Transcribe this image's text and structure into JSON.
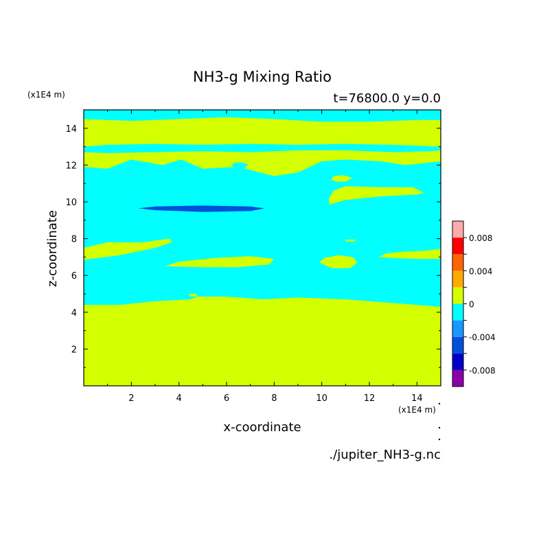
{
  "chart_data": {
    "type": "heatmap",
    "title": "NH3-g Mixing Ratio",
    "subtitle": "t=76800.0 y=0.0",
    "xlabel": "x-coordinate",
    "ylabel": "z-coordinate",
    "x_unit": "(x1E4 m)",
    "y_unit": "(x1E4 m)",
    "source": "./jupiter_NH3-g.nc",
    "xlim": [
      0,
      15
    ],
    "ylim": [
      0,
      15
    ],
    "xticks": [
      "2",
      "4",
      "6",
      "8",
      "10",
      "12",
      "14"
    ],
    "yticks": [
      "2",
      "4",
      "6",
      "8",
      "10",
      "12",
      "14"
    ],
    "colorbar": {
      "levels": [
        -0.01,
        -0.008,
        -0.006,
        -0.004,
        -0.002,
        0,
        0.002,
        0.004,
        0.006,
        0.008,
        0.01
      ],
      "colors": [
        "#8b00a8",
        "#0000c8",
        "#0050dc",
        "#1a96ff",
        "#00ffff",
        "#d4ff00",
        "#ffaa00",
        "#ff6400",
        "#ff0000",
        "#ffaaaa"
      ],
      "tick_labels": [
        "0.008",
        "0.004",
        "0",
        "-0.004",
        "-0.008"
      ],
      "tick_values": [
        0.008,
        0.004,
        0,
        -0.004,
        -0.008
      ]
    },
    "background_level": -0.001,
    "regions": [
      {
        "value": 0.001,
        "points": [
          [
            0,
            0
          ],
          [
            15,
            0
          ],
          [
            15,
            4.3
          ],
          [
            13,
            4.5
          ],
          [
            11,
            4.7
          ],
          [
            9,
            4.8
          ],
          [
            7.5,
            4.7
          ],
          [
            6,
            4.85
          ],
          [
            4.8,
            4.85
          ],
          [
            4.5,
            4.7
          ],
          [
            3,
            4.6
          ],
          [
            1.5,
            4.4
          ],
          [
            0,
            4.4
          ]
        ]
      },
      {
        "value": 0.001,
        "points": [
          [
            4.4,
            5.0
          ],
          [
            4.5,
            4.85
          ],
          [
            4.8,
            4.85
          ],
          [
            4.7,
            5.0
          ]
        ]
      },
      {
        "value": 0.001,
        "points": [
          [
            0,
            6.85
          ],
          [
            1.5,
            7.1
          ],
          [
            3,
            7.5
          ],
          [
            3.7,
            7.8
          ],
          [
            3.6,
            8.0
          ],
          [
            2.5,
            7.8
          ],
          [
            1,
            7.8
          ],
          [
            0,
            7.5
          ]
        ]
      },
      {
        "value": 0.001,
        "points": [
          [
            3.4,
            6.5
          ],
          [
            4,
            6.75
          ],
          [
            5.5,
            6.95
          ],
          [
            7,
            7.05
          ],
          [
            8,
            6.9
          ],
          [
            7.8,
            6.6
          ],
          [
            6.5,
            6.45
          ],
          [
            5,
            6.45
          ]
        ]
      },
      {
        "value": 0.001,
        "points": [
          [
            9.9,
            6.7
          ],
          [
            10.4,
            6.4
          ],
          [
            11.2,
            6.4
          ],
          [
            11.5,
            6.7
          ],
          [
            11.3,
            7.0
          ],
          [
            10.7,
            7.1
          ],
          [
            10.1,
            6.95
          ]
        ]
      },
      {
        "value": 0.001,
        "points": [
          [
            12.4,
            7.0
          ],
          [
            13,
            6.95
          ],
          [
            14,
            6.9
          ],
          [
            15,
            6.9
          ],
          [
            15,
            7.45
          ],
          [
            14.4,
            7.35
          ],
          [
            13.5,
            7.3
          ],
          [
            12.7,
            7.2
          ]
        ]
      },
      {
        "value": 0.001,
        "points": [
          [
            10.3,
            9.85
          ],
          [
            11,
            10.1
          ],
          [
            12.5,
            10.3
          ],
          [
            14,
            10.4
          ],
          [
            14.3,
            10.5
          ],
          [
            13.8,
            10.8
          ],
          [
            12.5,
            10.8
          ],
          [
            11,
            10.85
          ],
          [
            10.5,
            10.6
          ],
          [
            10.3,
            10.2
          ]
        ]
      },
      {
        "value": 0.001,
        "points": [
          [
            10.4,
            11.2
          ],
          [
            10.6,
            11.1
          ],
          [
            11,
            11.1
          ],
          [
            11.3,
            11.3
          ],
          [
            10.9,
            11.45
          ],
          [
            10.5,
            11.4
          ]
        ]
      },
      {
        "value": 0.001,
        "points": [
          [
            11,
            7.85
          ],
          [
            11.4,
            7.85
          ],
          [
            11.4,
            7.95
          ],
          [
            11,
            7.95
          ]
        ]
      },
      {
        "value": 0.001,
        "points": [
          [
            0,
            11.9
          ],
          [
            1,
            11.8
          ],
          [
            2,
            12.3
          ],
          [
            3.3,
            12.0
          ],
          [
            4.1,
            12.3
          ],
          [
            5,
            11.8
          ],
          [
            6.5,
            11.9
          ],
          [
            8,
            11.4
          ],
          [
            9,
            11.6
          ],
          [
            10,
            12.2
          ],
          [
            11,
            12.3
          ],
          [
            12.5,
            12.2
          ],
          [
            13.5,
            12.0
          ],
          [
            14.3,
            12.1
          ],
          [
            15,
            12.2
          ],
          [
            15,
            12.8
          ],
          [
            14.5,
            12.75
          ],
          [
            13,
            12.7
          ],
          [
            12,
            12.75
          ],
          [
            11,
            12.8
          ],
          [
            9,
            12.8
          ],
          [
            7,
            12.7
          ],
          [
            5,
            12.75
          ],
          [
            3,
            12.7
          ],
          [
            1,
            12.65
          ],
          [
            0,
            12.7
          ]
        ]
      },
      {
        "value": -0.001,
        "points": [
          [
            6.2,
            11.95
          ],
          [
            6.5,
            11.8
          ],
          [
            6.8,
            11.85
          ],
          [
            6.9,
            12.05
          ],
          [
            6.6,
            12.15
          ],
          [
            6.3,
            12.1
          ]
        ]
      },
      {
        "value": 0.001,
        "points": [
          [
            0,
            13.0
          ],
          [
            1,
            13.1
          ],
          [
            3,
            13.15
          ],
          [
            5,
            13.1
          ],
          [
            7,
            13.15
          ],
          [
            9,
            13.1
          ],
          [
            11,
            13.15
          ],
          [
            13,
            13.1
          ],
          [
            15,
            13.0
          ],
          [
            15,
            14.45
          ],
          [
            14,
            14.45
          ],
          [
            12,
            14.35
          ],
          [
            10,
            14.35
          ],
          [
            8,
            14.5
          ],
          [
            6,
            14.6
          ],
          [
            4,
            14.5
          ],
          [
            2,
            14.4
          ],
          [
            0,
            14.5
          ]
        ]
      },
      {
        "value": -0.005,
        "points": [
          [
            2.3,
            9.65
          ],
          [
            3,
            9.55
          ],
          [
            5,
            9.45
          ],
          [
            7,
            9.5
          ],
          [
            7.6,
            9.65
          ],
          [
            7,
            9.75
          ],
          [
            5,
            9.8
          ],
          [
            3,
            9.75
          ]
        ]
      }
    ]
  }
}
